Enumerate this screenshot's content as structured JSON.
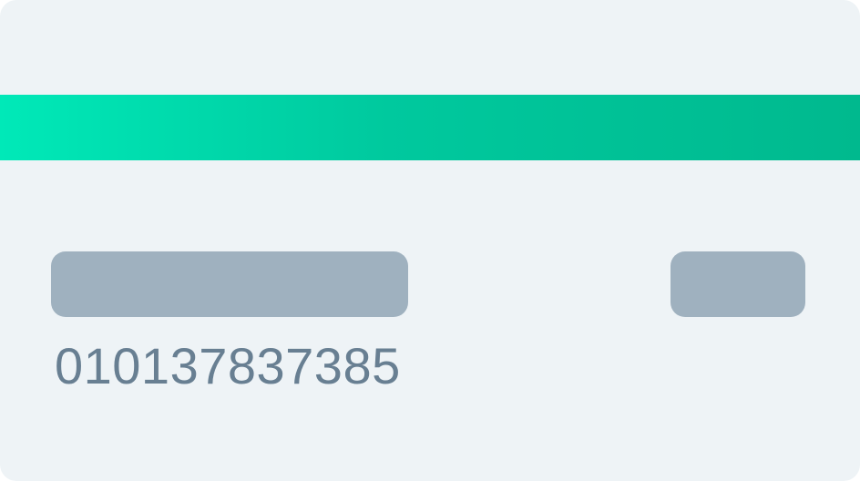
{
  "card": {
    "number": "010137837385",
    "colors": {
      "background": "#eef3f6",
      "stripe_start": "#00e9b8",
      "stripe_end": "#00b98e",
      "placeholder_field": "#9fb1bf",
      "number_text": "#687f92"
    }
  }
}
